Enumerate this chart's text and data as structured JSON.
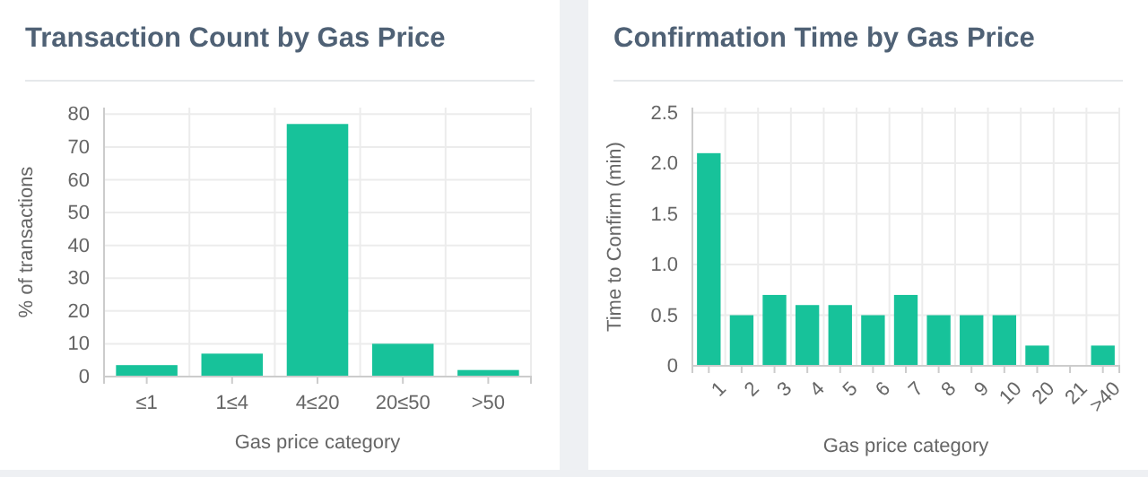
{
  "chart_data": [
    {
      "type": "bar",
      "title": "Transaction Count by Gas Price",
      "xlabel": "Gas price category",
      "ylabel": "% of transactions",
      "categories": [
        "≤1",
        "1≤4",
        "4≤20",
        "20≤50",
        ">50"
      ],
      "values": [
        3.5,
        7,
        77,
        10,
        2
      ],
      "color": "#17c29a",
      "ylim": [
        0,
        82
      ],
      "yticks": [
        0,
        10,
        20,
        30,
        40,
        50,
        60,
        70,
        80
      ],
      "grid": true
    },
    {
      "type": "bar",
      "title": "Confirmation Time by Gas Price",
      "xlabel": "Gas price category",
      "ylabel": "Time to Confirm (min)",
      "categories": [
        "1",
        "2",
        "3",
        "4",
        "5",
        "6",
        "7",
        "8",
        "9",
        "10",
        "20",
        "21",
        ">40"
      ],
      "values": [
        2.1,
        0.5,
        0.7,
        0.6,
        0.6,
        0.5,
        0.7,
        0.5,
        0.5,
        0.5,
        0.2,
        0,
        0.2
      ],
      "color": "#17c29a",
      "ylim": [
        0,
        2.55
      ],
      "yticks": [
        0,
        {
          "value": 0.5,
          "label": "0.5"
        },
        {
          "value": 1,
          "label": "1.0"
        },
        {
          "value": 1.5,
          "label": "1.5"
        },
        {
          "value": 2,
          "label": "2.0"
        },
        {
          "value": 2.5,
          "label": "2.5"
        }
      ],
      "grid": true
    }
  ]
}
